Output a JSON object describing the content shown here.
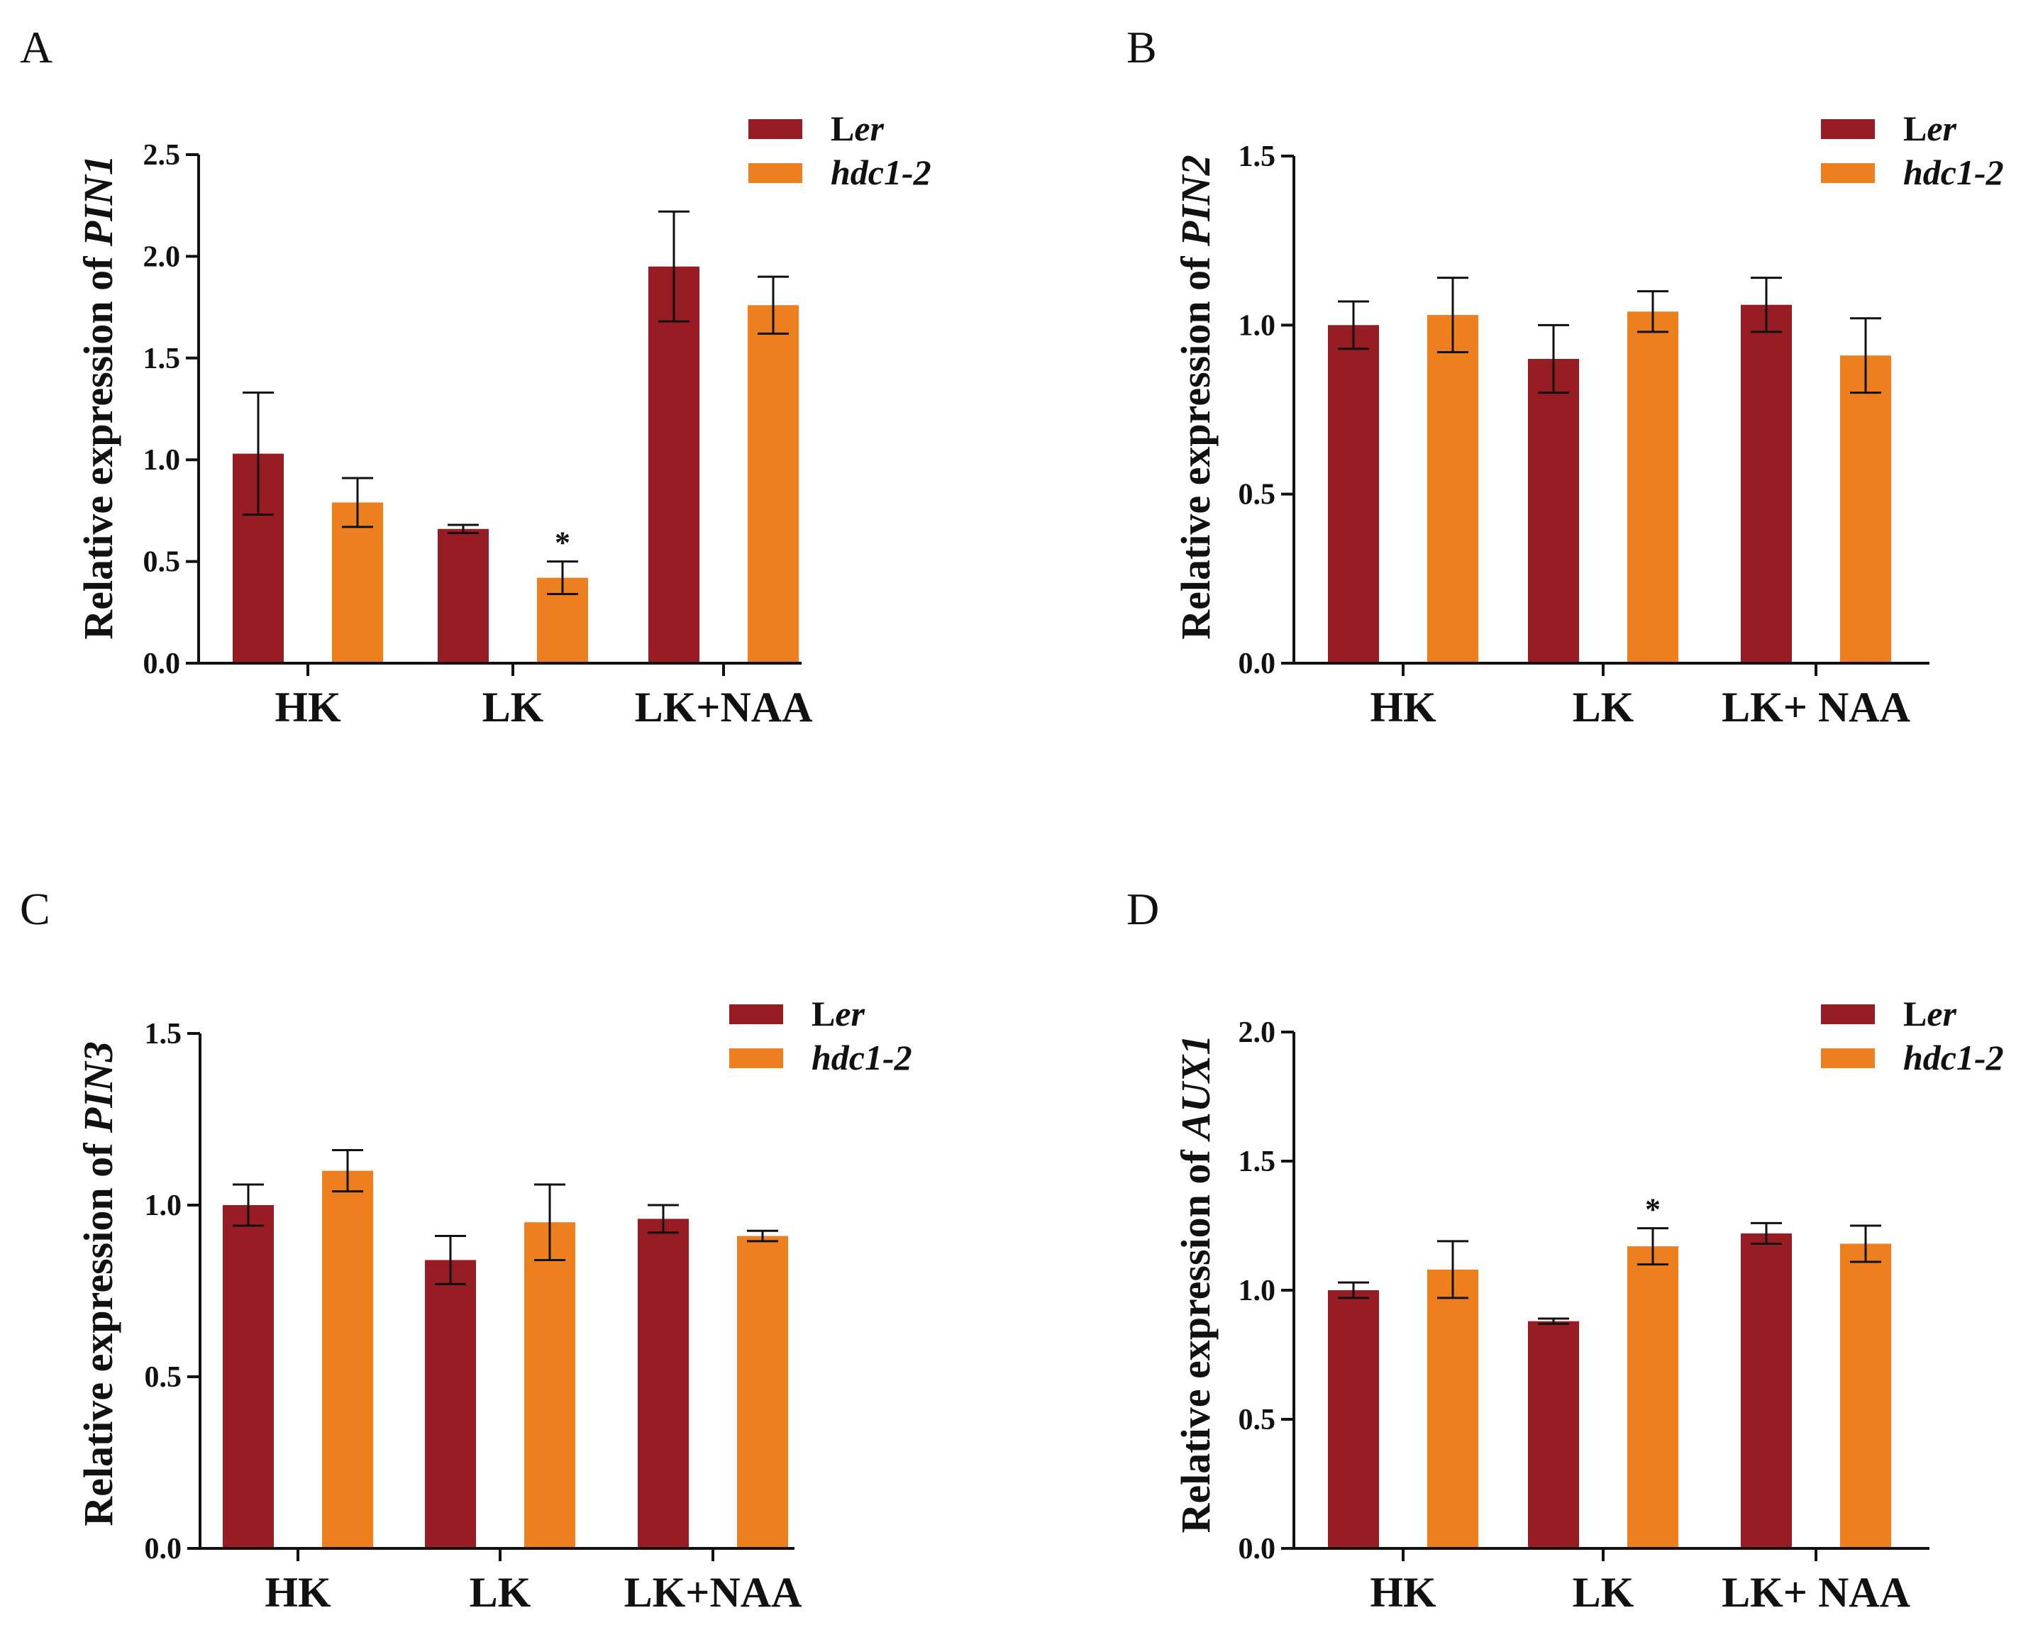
{
  "colors": {
    "ler": "#981c23",
    "hdc": "#ee7f1e",
    "axis": "#111111"
  },
  "legend": [
    {
      "label_plain": "L",
      "label_italic": "er",
      "color_key": "ler"
    },
    {
      "label_plain": "",
      "label_italic": "hdc1-2",
      "color_key": "hdc"
    }
  ],
  "chart_data": [
    {
      "panel": "A",
      "type": "bar",
      "ylabel_prefix": "Relative expression of ",
      "ylabel_gene": "PIN1",
      "ylim": [
        0,
        2.5
      ],
      "yticks": [
        "0.0",
        "0.5",
        "1.0",
        "1.5",
        "2.0",
        "2.5"
      ],
      "categories": [
        "HK",
        "LK",
        "LK+NAA"
      ],
      "series": [
        {
          "name": "Ler",
          "values": [
            1.03,
            0.66,
            1.95
          ],
          "errors": [
            0.3,
            0.02,
            0.27
          ]
        },
        {
          "name": "hdc1-2",
          "values": [
            0.79,
            0.42,
            1.76
          ],
          "errors": [
            0.12,
            0.08,
            0.14
          ]
        }
      ],
      "significance": [
        {
          "series": 1,
          "category": 1,
          "label": "*"
        }
      ]
    },
    {
      "panel": "B",
      "type": "bar",
      "ylabel_prefix": "Relative expression of ",
      "ylabel_gene": "PIN2",
      "ylim": [
        0,
        1.5
      ],
      "yticks": [
        "0.0",
        "0.5",
        "1.0",
        "1.5"
      ],
      "categories": [
        "HK",
        "LK",
        "LK+ NAA"
      ],
      "series": [
        {
          "name": "Ler",
          "values": [
            1.0,
            0.9,
            1.06
          ],
          "errors": [
            0.07,
            0.1,
            0.08
          ]
        },
        {
          "name": "hdc1-2",
          "values": [
            1.03,
            1.04,
            0.91
          ],
          "errors": [
            0.11,
            0.06,
            0.11
          ]
        }
      ],
      "significance": []
    },
    {
      "panel": "C",
      "type": "bar",
      "ylabel_prefix": "Relative expression of ",
      "ylabel_gene": "PIN3",
      "ylim": [
        0,
        1.5
      ],
      "yticks": [
        "0.0",
        "0.5",
        "1.0",
        "1.5"
      ],
      "categories": [
        "HK",
        "LK",
        "LK+NAA"
      ],
      "series": [
        {
          "name": "Ler",
          "values": [
            1.0,
            0.84,
            0.96
          ],
          "errors": [
            0.06,
            0.07,
            0.04
          ]
        },
        {
          "name": "hdc1-2",
          "values": [
            1.1,
            0.95,
            0.91
          ],
          "errors": [
            0.06,
            0.11,
            0.015
          ]
        }
      ],
      "significance": []
    },
    {
      "panel": "D",
      "type": "bar",
      "ylabel_prefix": "Relative expression of ",
      "ylabel_gene": "AUX1",
      "ylim": [
        0,
        2.0
      ],
      "yticks": [
        "0.0",
        "0.5",
        "1.0",
        "1.5",
        "2.0"
      ],
      "categories": [
        "HK",
        "LK",
        "LK+ NAA"
      ],
      "series": [
        {
          "name": "Ler",
          "values": [
            1.0,
            0.88,
            1.22
          ],
          "errors": [
            0.03,
            0.01,
            0.04
          ]
        },
        {
          "name": "hdc1-2",
          "values": [
            1.08,
            1.17,
            1.18
          ],
          "errors": [
            0.11,
            0.07,
            0.07
          ]
        }
      ],
      "significance": [
        {
          "series": 1,
          "category": 1,
          "label": "*"
        }
      ]
    }
  ]
}
